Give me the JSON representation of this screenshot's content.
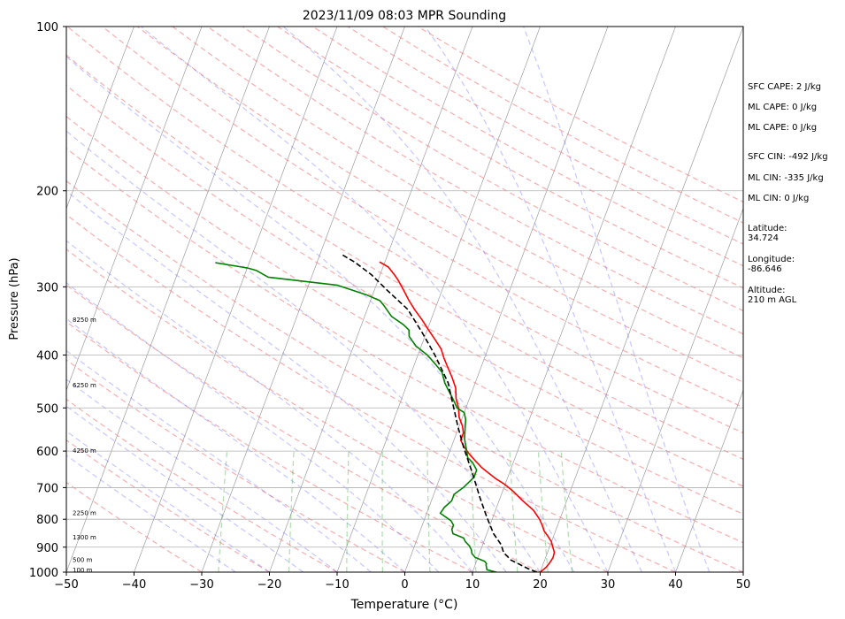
{
  "chart_data": {
    "type": "line",
    "title": "2023/11/09 08:03 MPR Sounding",
    "xlabel": "Temperature (°C)",
    "ylabel": "Pressure (hPa)",
    "xlim": [
      -50,
      50
    ],
    "ylim": [
      1000,
      100
    ],
    "y_scale": "log",
    "x_ticks": [
      -50,
      -40,
      -30,
      -20,
      -10,
      0,
      10,
      20,
      30,
      40,
      50
    ],
    "y_ticks": [
      1000,
      900,
      800,
      700,
      600,
      500,
      400,
      300,
      200,
      100
    ],
    "grid": true,
    "height_labels": [
      {
        "text": "8250 m",
        "p": 345
      },
      {
        "text": "6250 m",
        "p": 455
      },
      {
        "text": "4250 m",
        "p": 600
      },
      {
        "text": "2250 m",
        "p": 780
      },
      {
        "text": "1300 m",
        "p": 865
      },
      {
        "text": "500 m",
        "p": 950
      },
      {
        "text": "100 m",
        "p": 993
      }
    ],
    "series": [
      {
        "color": "#ff0000",
        "kind": "temperature",
        "points": [
          [
            20.0,
            1000
          ],
          [
            20.6,
            980
          ],
          [
            20.9,
            960
          ],
          [
            21.1,
            940
          ],
          [
            21.0,
            920
          ],
          [
            20.5,
            900
          ],
          [
            20.0,
            880
          ],
          [
            19.2,
            860
          ],
          [
            18.3,
            840
          ],
          [
            17.7,
            820
          ],
          [
            17.0,
            800
          ],
          [
            15.6,
            770
          ],
          [
            13.5,
            740
          ],
          [
            11.5,
            710
          ],
          [
            9.9,
            690
          ],
          [
            8.4,
            675
          ],
          [
            7.1,
            660
          ],
          [
            5.6,
            643
          ],
          [
            4.3,
            625
          ],
          [
            3.0,
            607
          ],
          [
            1.9,
            590
          ],
          [
            1.0,
            573
          ],
          [
            1.0,
            556
          ],
          [
            0.5,
            540
          ],
          [
            -0.5,
            520
          ],
          [
            -1.1,
            500
          ],
          [
            -2.0,
            480
          ],
          [
            -2.6,
            460
          ],
          [
            -3.7,
            440
          ],
          [
            -5.0,
            420
          ],
          [
            -6.0,
            405
          ],
          [
            -6.9,
            390
          ],
          [
            -8.3,
            375
          ],
          [
            -9.8,
            360
          ],
          [
            -11.3,
            345
          ],
          [
            -12.9,
            331
          ],
          [
            -14.3,
            318
          ],
          [
            -15.6,
            305
          ],
          [
            -17.0,
            292
          ],
          [
            -17.9,
            285
          ],
          [
            -19.2,
            276
          ],
          [
            -20.8,
            270
          ]
        ]
      },
      {
        "color": "#008000",
        "kind": "dewpoint",
        "points": [
          [
            13.5,
            1000
          ],
          [
            12.0,
            990
          ],
          [
            11.6,
            970
          ],
          [
            11.6,
            965
          ],
          [
            11.2,
            955
          ],
          [
            9.6,
            940
          ],
          [
            8.9,
            925
          ],
          [
            8.6,
            910
          ],
          [
            8.1,
            895
          ],
          [
            7.3,
            880
          ],
          [
            6.8,
            866
          ],
          [
            5.0,
            850
          ],
          [
            4.6,
            835
          ],
          [
            4.6,
            820
          ],
          [
            4.0,
            805
          ],
          [
            2.0,
            780
          ],
          [
            2.3,
            760
          ],
          [
            3.0,
            740
          ],
          [
            3.0,
            720
          ],
          [
            4.0,
            700
          ],
          [
            5.0,
            670
          ],
          [
            5.0,
            650
          ],
          [
            4.0,
            630
          ],
          [
            3.0,
            617
          ],
          [
            2.5,
            600
          ],
          [
            1.5,
            570
          ],
          [
            1.0,
            545
          ],
          [
            0.6,
            525
          ],
          [
            0.0,
            510
          ],
          [
            -1.3,
            500
          ],
          [
            -2.5,
            480
          ],
          [
            -3.5,
            465
          ],
          [
            -4.5,
            450
          ],
          [
            -5.5,
            430
          ],
          [
            -7.0,
            415
          ],
          [
            -8.6,
            400
          ],
          [
            -10.8,
            385
          ],
          [
            -12.3,
            370
          ],
          [
            -12.7,
            360
          ],
          [
            -13.8,
            352
          ],
          [
            -16.0,
            340
          ],
          [
            -17.7,
            325
          ],
          [
            -18.6,
            318
          ],
          [
            -21.0,
            310
          ],
          [
            -25.7,
            298
          ],
          [
            -36.4,
            288
          ],
          [
            -38.5,
            280
          ],
          [
            -40.0,
            277
          ],
          [
            -45.0,
            271
          ]
        ]
      },
      {
        "color": "#000000",
        "kind": "parcel",
        "dashed": true,
        "points": [
          [
            19.5,
            1000
          ],
          [
            18.0,
            985
          ],
          [
            15.0,
            950
          ],
          [
            14.0,
            930
          ],
          [
            13.5,
            920
          ],
          [
            12.7,
            890
          ],
          [
            11.0,
            850
          ],
          [
            9.0,
            790
          ],
          [
            7.0,
            730
          ],
          [
            4.6,
            660
          ],
          [
            1.8,
            590
          ],
          [
            -0.2,
            540
          ],
          [
            -1.8,
            500
          ],
          [
            -4.0,
            450
          ],
          [
            -7.5,
            400
          ],
          [
            -10.5,
            365
          ],
          [
            -14.0,
            330
          ],
          [
            -18.0,
            305
          ],
          [
            -21.3,
            285
          ],
          [
            -24.5,
            270
          ],
          [
            -26.7,
            262
          ]
        ]
      }
    ]
  },
  "info": {
    "sfc_cape": "SFC CAPE: 2 J/kg",
    "ml_cape_1": "ML CAPE: 0 J/kg",
    "ml_cape_2": "ML CAPE: 0 J/kg",
    "sfc_cin": "SFC CIN: -492 J/kg",
    "ml_cin_1": "ML CIN: -335 J/kg",
    "ml_cin_2": "ML CIN: 0 J/kg",
    "latitude_label": "Latitude:",
    "latitude_value": "34.724",
    "longitude_label": "Longitude:",
    "longitude_value": "-86.646",
    "altitude_label": "Altitude:",
    "altitude_value": "210 m AGL"
  }
}
